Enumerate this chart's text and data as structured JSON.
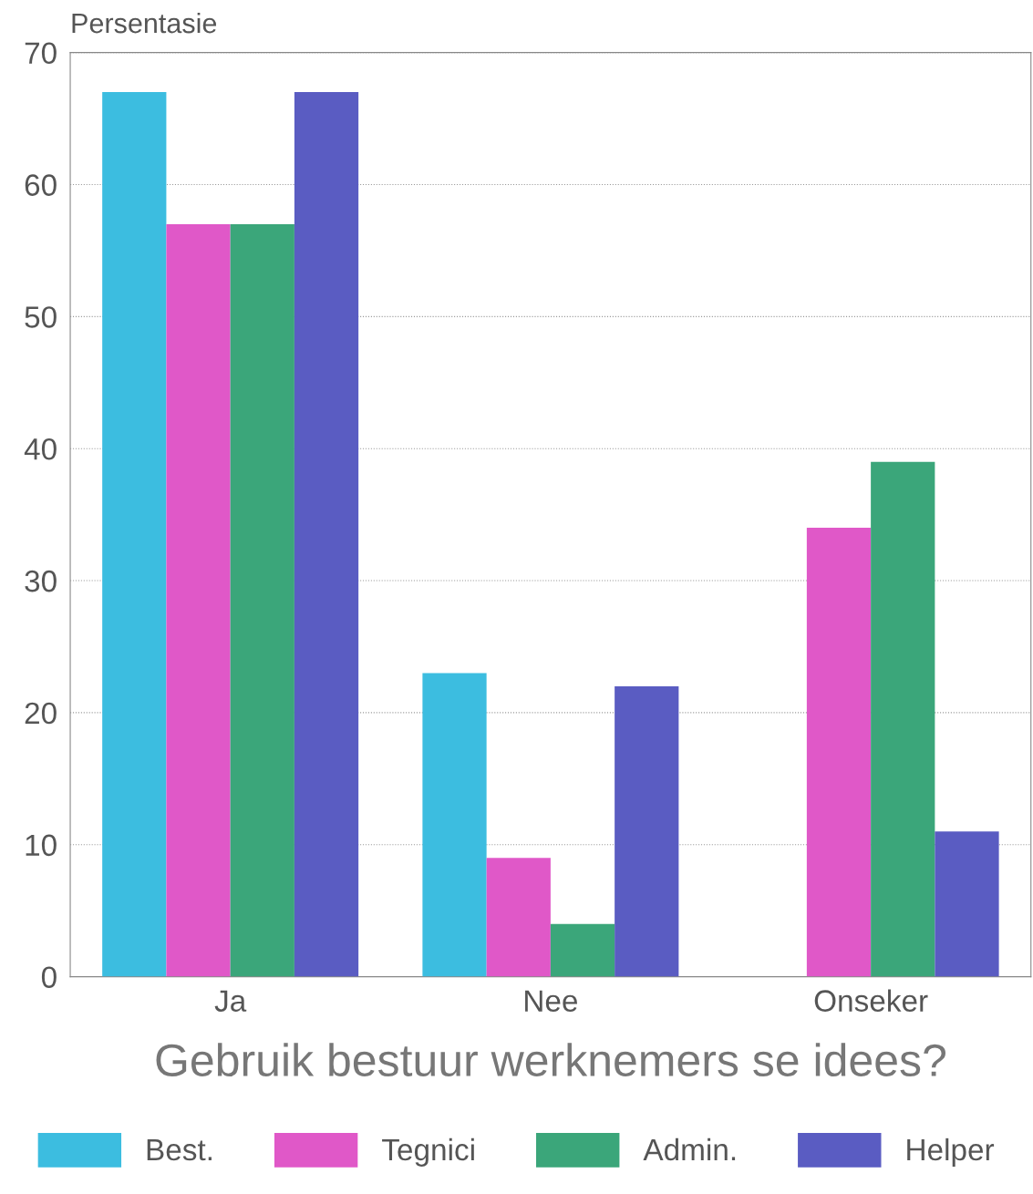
{
  "chart_data": {
    "type": "bar",
    "ylabel": "Persentasie",
    "xlabel": "Gebruik bestuur werknemers se idees?",
    "categories": [
      "Ja",
      "Nee",
      "Onseker"
    ],
    "series": [
      {
        "name": "Best.",
        "color": "#3cbde0",
        "values": [
          67,
          23,
          null
        ]
      },
      {
        "name": "Tegnici",
        "color": "#e058c8",
        "values": [
          57,
          9,
          34
        ]
      },
      {
        "name": "Admin.",
        "color": "#3ba67a",
        "values": [
          57,
          4,
          39
        ]
      },
      {
        "name": "Helper",
        "color": "#5a5cc2",
        "values": [
          67,
          22,
          11
        ]
      }
    ],
    "ylim": [
      0,
      70
    ],
    "yticks": [
      0,
      10,
      20,
      30,
      40,
      50,
      60,
      70
    ],
    "grid": "y",
    "legend": "bottom"
  }
}
